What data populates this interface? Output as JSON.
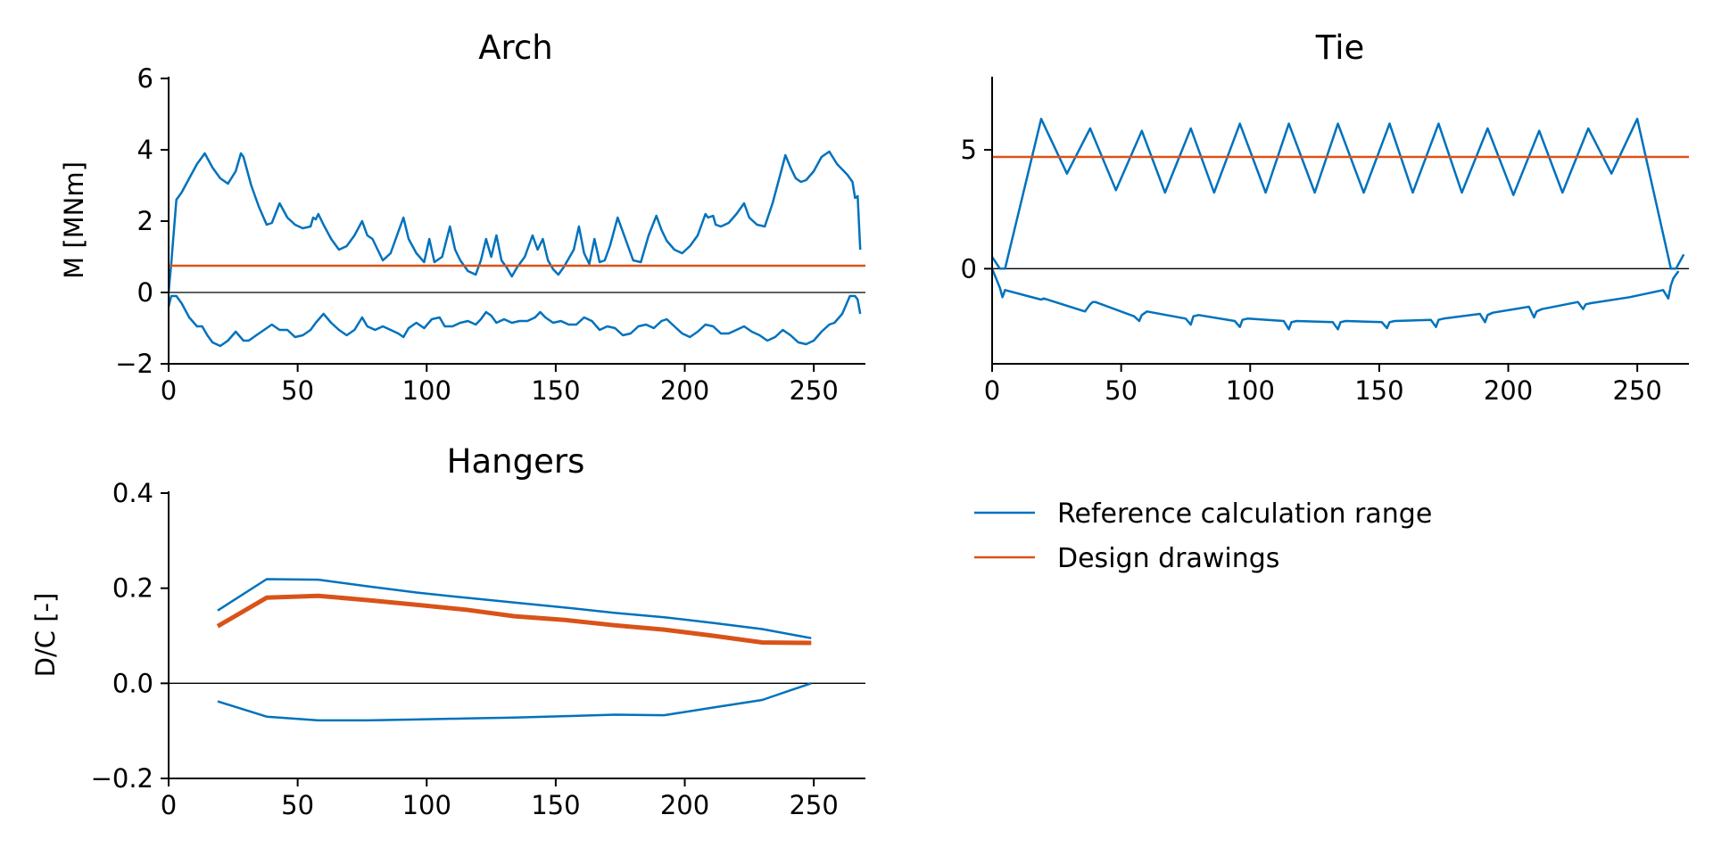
{
  "chart_data": [
    {
      "type": "line",
      "title": "Arch",
      "xlabel": "",
      "ylabel": "M [MNm]",
      "xlim": [
        0,
        270
      ],
      "ylim": [
        -2,
        6
      ],
      "xticks": [
        0,
        50,
        100,
        150,
        200,
        250
      ],
      "yticks": [
        -2,
        0,
        2,
        4,
        6
      ],
      "zero_line": true,
      "series": [
        {
          "role": "Reference calculation range",
          "color": "#0072bd",
          "part": "upper",
          "x": [
            0,
            1,
            3,
            5,
            8,
            11,
            14,
            17,
            20,
            23,
            26,
            28,
            29,
            32,
            35,
            38,
            40,
            43,
            46,
            49,
            52,
            55,
            56,
            57,
            58,
            60,
            63,
            66,
            69,
            72,
            75,
            77,
            79,
            81,
            83,
            86,
            89,
            91,
            93,
            96,
            99,
            101,
            103,
            106,
            109,
            111,
            113,
            116,
            119,
            121,
            123,
            125,
            127,
            129,
            131,
            133,
            135,
            138,
            141,
            143,
            145,
            147,
            149,
            151,
            153,
            155,
            157,
            159,
            161,
            163,
            165,
            167,
            169,
            171,
            174,
            177,
            180,
            183,
            186,
            189,
            191,
            193,
            196,
            199,
            202,
            205,
            208,
            209,
            211,
            212,
            214,
            217,
            220,
            223,
            225,
            228,
            231,
            234,
            237,
            239,
            241,
            243,
            245,
            247,
            250,
            253,
            256,
            259,
            263,
            265,
            266,
            267,
            268
          ],
          "y": [
            0,
            0.8,
            2.6,
            2.8,
            3.2,
            3.6,
            3.9,
            3.5,
            3.2,
            3.05,
            3.4,
            3.9,
            3.8,
            3.0,
            2.4,
            1.9,
            1.95,
            2.5,
            2.1,
            1.9,
            1.8,
            1.85,
            2.1,
            2.05,
            2.2,
            1.9,
            1.5,
            1.2,
            1.3,
            1.6,
            2.0,
            1.6,
            1.5,
            1.2,
            0.9,
            1.1,
            1.7,
            2.1,
            1.5,
            1.1,
            0.85,
            1.5,
            0.85,
            1.0,
            1.85,
            1.2,
            0.9,
            0.6,
            0.5,
            0.9,
            1.5,
            1.0,
            1.6,
            0.9,
            0.7,
            0.45,
            0.7,
            1.0,
            1.6,
            1.2,
            1.5,
            0.9,
            0.65,
            0.5,
            0.7,
            0.95,
            1.2,
            1.85,
            1.1,
            0.8,
            1.5,
            0.85,
            0.9,
            1.3,
            2.1,
            1.5,
            0.9,
            0.85,
            1.6,
            2.15,
            1.75,
            1.45,
            1.2,
            1.1,
            1.3,
            1.6,
            2.2,
            2.1,
            2.15,
            1.9,
            1.85,
            1.95,
            2.2,
            2.5,
            2.1,
            1.9,
            1.85,
            2.5,
            3.3,
            3.85,
            3.5,
            3.2,
            3.1,
            3.15,
            3.4,
            3.8,
            3.95,
            3.6,
            3.3,
            3.1,
            2.65,
            2.7,
            1.2
          ]
        },
        {
          "role": "Reference calculation range",
          "color": "#0072bd",
          "part": "lower",
          "x": [
            0,
            1,
            3,
            5,
            8,
            11,
            13,
            15,
            17,
            20,
            23,
            26,
            29,
            31,
            34,
            37,
            40,
            43,
            46,
            49,
            52,
            55,
            57,
            60,
            63,
            66,
            69,
            72,
            75,
            77,
            80,
            83,
            86,
            89,
            91,
            93,
            96,
            99,
            102,
            105,
            107,
            110,
            113,
            116,
            119,
            121,
            123,
            125,
            127,
            130,
            133,
            136,
            139,
            142,
            144,
            146,
            149,
            152,
            155,
            158,
            161,
            164,
            167,
            170,
            173,
            176,
            179,
            182,
            185,
            188,
            191,
            193,
            196,
            199,
            202,
            205,
            208,
            211,
            214,
            217,
            220,
            223,
            226,
            229,
            232,
            235,
            238,
            241,
            244,
            247,
            250,
            253,
            256,
            258,
            261,
            264,
            266,
            267,
            268
          ],
          "y": [
            -0.4,
            -0.1,
            -0.1,
            -0.3,
            -0.7,
            -0.95,
            -0.95,
            -1.2,
            -1.4,
            -1.5,
            -1.35,
            -1.1,
            -1.35,
            -1.35,
            -1.2,
            -1.05,
            -0.9,
            -1.05,
            -1.05,
            -1.25,
            -1.2,
            -1.05,
            -0.85,
            -0.6,
            -0.85,
            -1.05,
            -1.2,
            -1.05,
            -0.7,
            -0.95,
            -1.05,
            -0.95,
            -1.05,
            -1.15,
            -1.25,
            -1.0,
            -0.85,
            -1.0,
            -0.75,
            -0.7,
            -0.95,
            -0.95,
            -0.85,
            -0.8,
            -0.9,
            -0.75,
            -0.55,
            -0.65,
            -0.85,
            -0.75,
            -0.85,
            -0.8,
            -0.8,
            -0.7,
            -0.55,
            -0.7,
            -0.85,
            -0.8,
            -0.9,
            -0.9,
            -0.7,
            -0.8,
            -1.05,
            -0.95,
            -1.0,
            -1.2,
            -1.15,
            -0.95,
            -0.9,
            -1.0,
            -0.8,
            -0.75,
            -0.95,
            -1.15,
            -1.25,
            -1.1,
            -0.9,
            -0.95,
            -1.15,
            -1.15,
            -1.05,
            -0.95,
            -1.1,
            -1.2,
            -1.35,
            -1.25,
            -1.05,
            -1.2,
            -1.4,
            -1.45,
            -1.35,
            -1.1,
            -0.9,
            -0.85,
            -0.6,
            -0.1,
            -0.1,
            -0.2,
            -0.6
          ]
        },
        {
          "role": "Design drawings",
          "color": "#d95319",
          "part": "design",
          "x": [
            0,
            270
          ],
          "y": [
            0.75,
            0.75
          ]
        }
      ]
    },
    {
      "type": "line",
      "title": "Tie",
      "xlabel": "",
      "ylabel": "",
      "xlim": [
        0,
        270
      ],
      "ylim": [
        -4,
        8
      ],
      "xticks": [
        0,
        50,
        100,
        150,
        200,
        250
      ],
      "yticks": [
        0,
        5
      ],
      "zero_line": true,
      "series": [
        {
          "role": "Reference calculation range",
          "color": "#0072bd",
          "part": "upper",
          "x": [
            0,
            3,
            5,
            19,
            29,
            38,
            48,
            58,
            67,
            77,
            86,
            96,
            106,
            115,
            125,
            134,
            144,
            154,
            163,
            173,
            182,
            192,
            202,
            212,
            221,
            231,
            240,
            250,
            263,
            265,
            266,
            268
          ],
          "y": [
            0.5,
            0,
            0,
            6.3,
            4.0,
            5.9,
            3.3,
            5.8,
            3.2,
            5.9,
            3.2,
            6.1,
            3.2,
            6.1,
            3.2,
            6.1,
            3.2,
            6.1,
            3.2,
            6.1,
            3.2,
            5.9,
            3.1,
            5.8,
            3.2,
            5.9,
            4.0,
            6.3,
            0,
            0,
            0.2,
            0.6
          ]
        },
        {
          "role": "Reference calculation range",
          "color": "#0072bd",
          "part": "lower",
          "x": [
            0,
            3,
            4,
            5,
            19,
            20,
            36,
            38,
            39,
            40,
            55,
            57,
            58,
            60,
            75,
            77,
            78,
            80,
            94,
            96,
            97,
            99,
            113,
            115,
            116,
            118,
            132,
            134,
            135,
            137,
            151,
            153,
            154,
            156,
            170,
            172,
            173,
            175,
            189,
            191,
            192,
            194,
            208,
            210,
            211,
            213,
            227,
            229,
            230,
            232,
            247,
            260,
            262,
            263,
            264,
            266
          ],
          "y": [
            0,
            -0.8,
            -1.2,
            -0.9,
            -1.3,
            -1.25,
            -1.8,
            -1.5,
            -1.4,
            -1.4,
            -2.0,
            -2.2,
            -1.95,
            -1.8,
            -2.1,
            -2.35,
            -2.0,
            -1.95,
            -2.2,
            -2.45,
            -2.15,
            -2.1,
            -2.2,
            -2.55,
            -2.25,
            -2.2,
            -2.25,
            -2.55,
            -2.25,
            -2.2,
            -2.25,
            -2.5,
            -2.25,
            -2.2,
            -2.15,
            -2.45,
            -2.15,
            -2.1,
            -1.9,
            -2.25,
            -1.95,
            -1.85,
            -1.6,
            -2.05,
            -1.8,
            -1.7,
            -1.4,
            -1.7,
            -1.5,
            -1.45,
            -1.2,
            -0.9,
            -1.25,
            -0.7,
            -0.4,
            -0.1
          ]
        },
        {
          "role": "Design drawings",
          "color": "#d95319",
          "part": "design",
          "x": [
            0,
            270
          ],
          "y": [
            4.7,
            4.7
          ]
        }
      ]
    },
    {
      "type": "line",
      "title": "Hangers",
      "xlabel": "",
      "ylabel": "D/C [-]",
      "xlim": [
        0,
        270
      ],
      "ylim": [
        -0.2,
        0.4
      ],
      "xticks": [
        0,
        50,
        100,
        150,
        200,
        250
      ],
      "yticks": [
        -0.2,
        0.0,
        0.2,
        0.4
      ],
      "ytick_labels": [
        "−0.2",
        "0.0",
        "0.2",
        "0.4"
      ],
      "zero_line": true,
      "series": [
        {
          "role": "Reference calculation range",
          "color": "#0072bd",
          "part": "upper",
          "x": [
            19,
            38,
            58,
            77,
            96,
            115,
            134,
            154,
            173,
            192,
            211,
            230,
            249
          ],
          "y": [
            0.153,
            0.219,
            0.218,
            0.204,
            0.191,
            0.18,
            0.17,
            0.159,
            0.148,
            0.139,
            0.127,
            0.114,
            0.095
          ]
        },
        {
          "role": "Design drawings",
          "color": "#d95319",
          "part": "design",
          "width": 5,
          "x": [
            19,
            38,
            58,
            77,
            96,
            115,
            134,
            154,
            173,
            192,
            211,
            230,
            249
          ],
          "y": [
            0.12,
            0.18,
            0.184,
            0.175,
            0.165,
            0.155,
            0.141,
            0.133,
            0.122,
            0.113,
            0.1,
            0.086,
            0.085
          ]
        },
        {
          "role": "Reference calculation range",
          "color": "#0072bd",
          "part": "lower",
          "x": [
            19,
            38,
            58,
            77,
            96,
            115,
            134,
            154,
            173,
            192,
            211,
            230,
            249
          ],
          "y": [
            -0.038,
            -0.07,
            -0.078,
            -0.078,
            -0.076,
            -0.074,
            -0.072,
            -0.069,
            -0.066,
            -0.067,
            -0.051,
            -0.035,
            0.0
          ]
        }
      ]
    }
  ],
  "legend": {
    "placement": "right of Hangers panel",
    "entries": [
      {
        "label": "Reference calculation range",
        "color": "#0072bd"
      },
      {
        "label": "Design drawings",
        "color": "#d95319"
      }
    ]
  }
}
